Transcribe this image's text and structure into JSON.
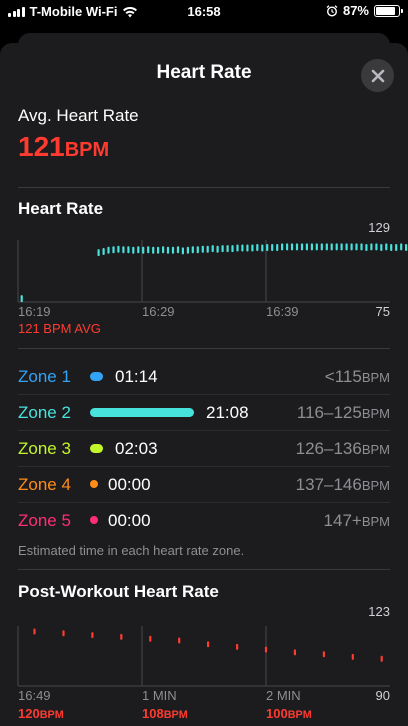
{
  "status_bar": {
    "carrier": "T-Mobile Wi-Fi",
    "time": "16:58",
    "battery": "87%",
    "battery_level": 0.87
  },
  "sheet": {
    "title": "Heart Rate",
    "close_icon": "close-icon"
  },
  "avg": {
    "label": "Avg. Heart Rate",
    "value": "121",
    "unit": "BPM"
  },
  "heart_rate_chart": {
    "title": "Heart Rate",
    "y_max_label": "129",
    "y_min_label": "75",
    "x_labels": [
      "16:19",
      "16:29",
      "16:39"
    ],
    "avg_label": "121 BPM AVG"
  },
  "zones": [
    {
      "name": "Zone 1",
      "time": "01:14",
      "range": "<115",
      "unit": "BPM",
      "color": "#32a3f5",
      "bar_fraction": 0.06
    },
    {
      "name": "Zone 2",
      "time": "21:08",
      "range": "116–125",
      "unit": "BPM",
      "color": "#48e2dc",
      "bar_fraction": 1.0
    },
    {
      "name": "Zone 3",
      "time": "02:03",
      "range": "126–136",
      "unit": "BPM",
      "color": "#c3f52b",
      "bar_fraction": 0.1
    },
    {
      "name": "Zone 4",
      "time": "00:00",
      "range": "137–146",
      "unit": "BPM",
      "color": "#ff8c1a",
      "bar_fraction": 0
    },
    {
      "name": "Zone 5",
      "time": "00:00",
      "range": "147+",
      "unit": "BPM",
      "color": "#ff2d78",
      "bar_fraction": 0
    }
  ],
  "zone_footnote": "Estimated time in each heart rate zone.",
  "post_workout": {
    "title": "Post-Workout Heart Rate",
    "y_max_label": "123",
    "y_min_label": "90",
    "x_labels": [
      "16:49",
      "1 MIN",
      "2 MIN"
    ],
    "values": [
      {
        "num": "120",
        "unit": "BPM"
      },
      {
        "num": "108",
        "unit": "BPM"
      },
      {
        "num": "100",
        "unit": "BPM"
      }
    ]
  },
  "chart_data": [
    {
      "type": "scatter",
      "title": "Heart Rate",
      "xlabel": "",
      "ylabel": "",
      "ylim": [
        75,
        129
      ],
      "x_tick_labels": [
        "16:19",
        "16:29",
        "16:39"
      ],
      "series": [
        {
          "color": "#48e2dc",
          "points_minutes": [
            [
              0.3,
              78
            ],
            [
              6.5,
              118
            ],
            [
              6.9,
              119
            ],
            [
              7.3,
              120
            ],
            [
              7.7,
              120.5
            ],
            [
              8.1,
              121
            ],
            [
              8.5,
              120.5
            ],
            [
              8.9,
              120.5
            ],
            [
              9.3,
              120
            ],
            [
              9.7,
              120.5
            ],
            [
              10.1,
              120
            ],
            [
              10.5,
              120.5
            ],
            [
              10.9,
              120
            ],
            [
              11.3,
              120
            ],
            [
              11.7,
              120.5
            ],
            [
              12.1,
              120
            ],
            [
              12.5,
              120
            ],
            [
              12.9,
              120.5
            ],
            [
              13.3,
              119.5
            ],
            [
              13.7,
              120
            ],
            [
              14.1,
              120.5
            ],
            [
              14.5,
              120.5
            ],
            [
              14.9,
              121
            ],
            [
              15.3,
              121
            ],
            [
              15.7,
              121.5
            ],
            [
              16.1,
              121
            ],
            [
              16.5,
              121.5
            ],
            [
              16.9,
              121.5
            ],
            [
              17.3,
              121.5
            ],
            [
              17.7,
              122
            ],
            [
              18.1,
              122
            ],
            [
              18.5,
              122
            ],
            [
              18.9,
              122
            ],
            [
              19.3,
              122.5
            ],
            [
              19.7,
              122
            ],
            [
              20.1,
              122.5
            ],
            [
              20.5,
              122.5
            ],
            [
              20.9,
              122.5
            ],
            [
              21.3,
              123
            ],
            [
              21.7,
              123
            ],
            [
              22.1,
              123
            ],
            [
              22.5,
              123
            ],
            [
              22.9,
              123
            ],
            [
              23.3,
              123
            ],
            [
              23.7,
              123
            ],
            [
              24.1,
              123
            ],
            [
              24.5,
              123
            ],
            [
              24.9,
              123
            ],
            [
              25.3,
              123
            ],
            [
              25.7,
              123
            ],
            [
              26.1,
              123
            ],
            [
              26.5,
              123
            ],
            [
              26.9,
              123
            ],
            [
              27.3,
              123
            ],
            [
              27.7,
              123
            ],
            [
              28.1,
              122.5
            ],
            [
              28.5,
              123
            ],
            [
              28.9,
              123
            ],
            [
              29.3,
              122.5
            ],
            [
              29.7,
              123
            ],
            [
              30.1,
              122.5
            ],
            [
              30.5,
              122.5
            ],
            [
              30.9,
              123
            ],
            [
              31.3,
              122.5
            ],
            [
              31.7,
              122.5
            ],
            [
              32.1,
              123
            ],
            [
              32.5,
              123
            ],
            [
              32.9,
              122
            ],
            [
              33.3,
              122.5
            ],
            [
              33.7,
              122
            ]
          ]
        }
      ]
    },
    {
      "type": "scatter",
      "title": "Post-Workout Heart Rate",
      "xlabel": "",
      "ylabel": "",
      "ylim": [
        90,
        123
      ],
      "x_tick_labels": [
        "16:49",
        "1 MIN",
        "2 MIN"
      ],
      "series": [
        {
          "color": "#ff3b30",
          "points_seconds": [
            [
              8,
              120
            ],
            [
              22,
              119
            ],
            [
              36,
              118
            ],
            [
              50,
              117
            ],
            [
              64,
              116
            ],
            [
              78,
              115
            ],
            [
              92,
              113
            ],
            [
              106,
              111.5
            ],
            [
              120,
              110
            ],
            [
              134,
              108.5
            ],
            [
              148,
              107.5
            ],
            [
              162,
              106
            ],
            [
              176,
              105
            ],
            [
              190,
              104
            ],
            [
              204,
              103
            ],
            [
              218,
              102
            ],
            [
              232,
              101
            ],
            [
              246,
              100.5
            ],
            [
              260,
              100
            ],
            [
              274,
              99.5
            ],
            [
              288,
              99
            ]
          ]
        }
      ]
    }
  ]
}
